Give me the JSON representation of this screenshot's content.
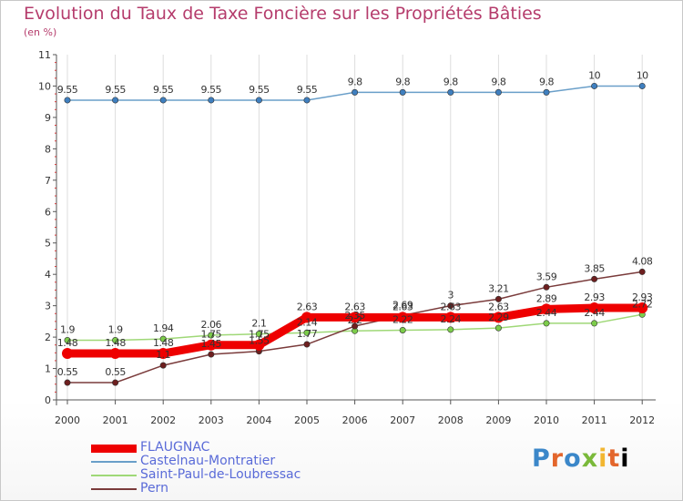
{
  "title": "Evolution du Taux de Taxe Foncière sur les Propriétés Bâties",
  "subtitle": "(en %)",
  "logo": "Proxiti",
  "colors": {
    "axis": "#555555",
    "grid": "#dddddd",
    "tick_minor": "#d33a3a",
    "label_text": "#333333"
  },
  "chart_data": {
    "type": "line",
    "x": [
      2000,
      2001,
      2002,
      2003,
      2004,
      2005,
      2006,
      2007,
      2008,
      2009,
      2010,
      2011,
      2012
    ],
    "ylim": [
      0,
      11
    ],
    "y_ticks": [
      0,
      1,
      2,
      3,
      4,
      5,
      6,
      7,
      8,
      9,
      10,
      11
    ],
    "grid": "vertical",
    "legend": "bottom-left",
    "series": [
      {
        "name": "FLAUGNAC",
        "color": "#ee0000",
        "marker": "#ee0000",
        "width": 9,
        "values": [
          1.48,
          1.48,
          1.48,
          1.75,
          1.75,
          2.63,
          2.63,
          2.63,
          2.63,
          2.63,
          2.89,
          2.93,
          2.93
        ],
        "labels": [
          "1.48",
          "1.48",
          "1.48",
          "1.75",
          "1.75",
          "2.63",
          "2.63",
          "2.63",
          "2.63",
          "2.63",
          "2.89",
          "2.93",
          "2.93"
        ],
        "label_pos": "above"
      },
      {
        "name": "Castelnau-Montratier",
        "color": "#6a9fc9",
        "marker": "#3f7fbf",
        "width": 1.5,
        "values": [
          9.55,
          9.55,
          9.55,
          9.55,
          9.55,
          9.55,
          9.8,
          9.8,
          9.8,
          9.8,
          9.8,
          10,
          10
        ],
        "labels": [
          "9.55",
          "9.55",
          "9.55",
          "9.55",
          "9.55",
          "9.55",
          "9.8",
          "9.8",
          "9.8",
          "9.8",
          "9.8",
          "10",
          "10"
        ],
        "label_pos": "above"
      },
      {
        "name": "Saint-Paul-de-Loubressac",
        "color": "#9fd877",
        "marker": "#7ccc4a",
        "width": 1.5,
        "values": [
          1.9,
          1.9,
          1.94,
          2.06,
          2.1,
          2.14,
          2.2,
          2.22,
          2.24,
          2.29,
          2.44,
          2.44,
          2.72
        ],
        "labels": [
          "1.9",
          "1.9",
          "1.94",
          "2.06",
          "2.1",
          "2.14",
          "2.2",
          "2.22",
          "2.24",
          "2.29",
          "2.44",
          "2.44",
          "2.72"
        ],
        "label_pos": "above"
      },
      {
        "name": "Pern",
        "color": "#7a3b3b",
        "marker": "#6e1f1f",
        "width": 1.5,
        "values": [
          0.55,
          0.55,
          1.1,
          1.45,
          1.55,
          1.77,
          2.35,
          2.69,
          3,
          3.21,
          3.59,
          3.85,
          4.08
        ],
        "labels": [
          "0.55",
          "0.55",
          "1.1",
          "1.45",
          "1.55",
          "1.77",
          "2.35",
          "2.69",
          "3",
          "3.21",
          "3.59",
          "3.85",
          "4.08"
        ],
        "label_pos": "above"
      }
    ]
  }
}
